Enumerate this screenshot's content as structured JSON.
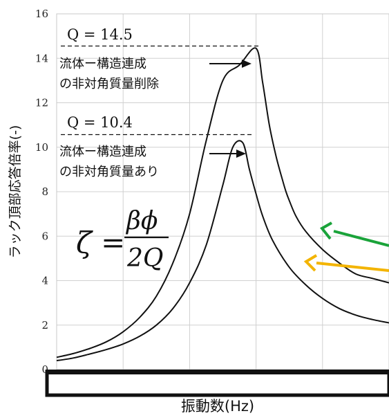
{
  "chart_data": {
    "type": "line",
    "xlabel": "振動数(Hz)",
    "ylabel": "ラック頂部応答倍率(-)",
    "ylim": [
      0,
      16
    ],
    "yticks": [
      "0",
      "2",
      "4",
      "6",
      "8",
      "10",
      "12",
      "14",
      "16"
    ],
    "grid": true,
    "x_tick_labels_visible": false,
    "series": [
      {
        "peak": 14.5,
        "x": [
          0,
          0.05,
          0.1,
          0.15,
          0.2,
          0.25,
          0.3,
          0.35,
          0.4,
          0.45,
          0.5,
          0.55,
          0.6,
          0.62,
          0.64,
          0.66,
          0.68,
          0.69,
          0.7,
          0.72,
          0.75,
          0.8,
          0.85,
          0.9,
          0.95,
          1.0
        ],
        "values": [
          0.55,
          0.72,
          0.95,
          1.25,
          1.7,
          2.35,
          3.3,
          4.8,
          7.0,
          10.3,
          13.0,
          13.7,
          14.45,
          12.9,
          11.0,
          9.6,
          8.5,
          8.0,
          7.6,
          6.9,
          6.2,
          5.4,
          4.8,
          4.3,
          4.1,
          3.9
        ]
      },
      {
        "peak": 10.4,
        "x": [
          0,
          0.05,
          0.1,
          0.15,
          0.2,
          0.25,
          0.3,
          0.35,
          0.4,
          0.45,
          0.5,
          0.53,
          0.56,
          0.58,
          0.6,
          0.62,
          0.65,
          0.7,
          0.75,
          0.8,
          0.85,
          0.9,
          0.95,
          1.0
        ],
        "values": [
          0.4,
          0.52,
          0.7,
          0.9,
          1.15,
          1.5,
          2.0,
          2.75,
          3.9,
          5.6,
          8.3,
          10.0,
          10.2,
          9.0,
          7.9,
          6.9,
          5.8,
          4.6,
          3.8,
          3.2,
          2.75,
          2.45,
          2.25,
          2.1
        ]
      }
    ]
  },
  "annotations": {
    "q_upper": "Q = 14.5",
    "q_lower": "Q = 10.4",
    "upper_line1": "流体ー構造連成",
    "upper_line2": "の非対角質量削除",
    "lower_line1": "流体ー構造連成",
    "lower_line2": "の非対角質量あり",
    "formula_lhs": "ζ =",
    "formula_num": "βϕ",
    "formula_den": "2Q"
  },
  "colors": {
    "curve": "#111111",
    "grid": "#d0d0d0",
    "arrow_green": "#1aa33a",
    "arrow_yellow": "#f3b400"
  }
}
